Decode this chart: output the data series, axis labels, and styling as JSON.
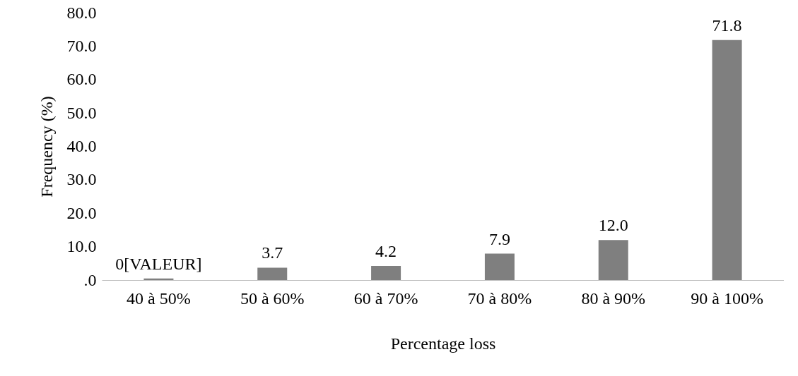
{
  "chart_data": {
    "type": "bar",
    "xlabel": "Percentage loss",
    "ylabel": "Frequency (%)",
    "categories": [
      "40 à 50%",
      "50 à 60%",
      "60 à 70%",
      "70 à 80%",
      "80 à 90%",
      "90 à 100%"
    ],
    "series": [
      {
        "color": "#7f7f7f",
        "values": [
          0.5,
          3.7,
          4.2,
          7.9,
          12.0,
          71.8
        ]
      }
    ],
    "value_labels": [
      "0[VALEUR]",
      "3.7",
      "4.2",
      "7.9",
      "12.0",
      "71.8"
    ],
    "ylim": [
      0,
      80
    ],
    "yticks": [
      {
        "value": 0,
        "label": ".0"
      },
      {
        "value": 10,
        "label": "10.0"
      },
      {
        "value": 20,
        "label": "20.0"
      },
      {
        "value": 30,
        "label": "30.0"
      },
      {
        "value": 40,
        "label": "40.0"
      },
      {
        "value": 50,
        "label": "50.0"
      },
      {
        "value": 60,
        "label": "60.0"
      },
      {
        "value": 70,
        "label": "70.0"
      },
      {
        "value": 80,
        "label": "80.0"
      }
    ],
    "grid": false
  }
}
